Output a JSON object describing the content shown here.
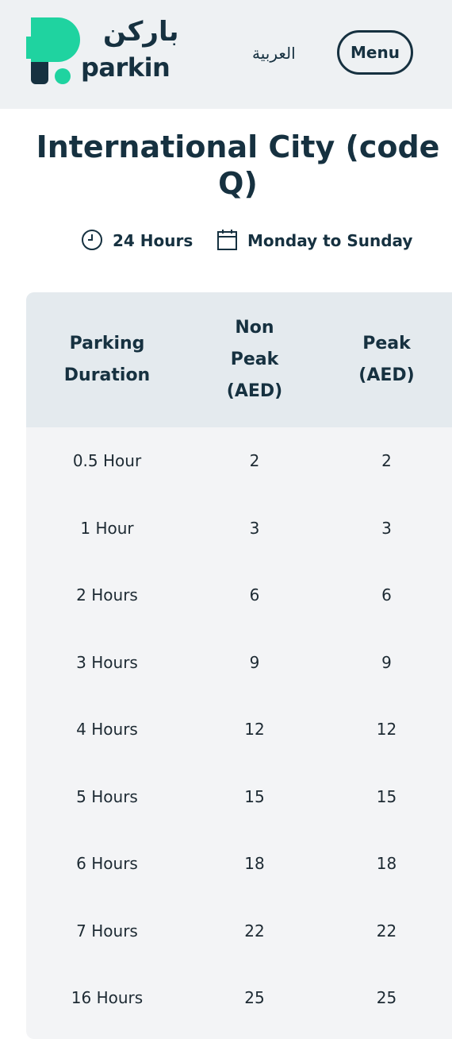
{
  "header": {
    "logo_arabic": "باركن",
    "logo_text": "parkin",
    "language": "العربية",
    "menu": "Menu"
  },
  "title": "International City (code Q)",
  "info": {
    "hours": "24 Hours",
    "days": "Monday to Sunday"
  },
  "table": {
    "columns": [
      "Parking Duration",
      "Non Peak (AED)",
      "Peak (AED)"
    ],
    "rows": [
      [
        "0.5 Hour",
        2,
        2
      ],
      [
        "1 Hour",
        3,
        3
      ],
      [
        "2 Hours",
        6,
        6
      ],
      [
        "3 Hours",
        9,
        9
      ],
      [
        "4 Hours",
        12,
        12
      ],
      [
        "5 Hours",
        15,
        15
      ],
      [
        "6 Hours",
        18,
        18
      ],
      [
        "7 Hours",
        22,
        22
      ],
      [
        "16 Hours",
        25,
        25
      ]
    ]
  }
}
